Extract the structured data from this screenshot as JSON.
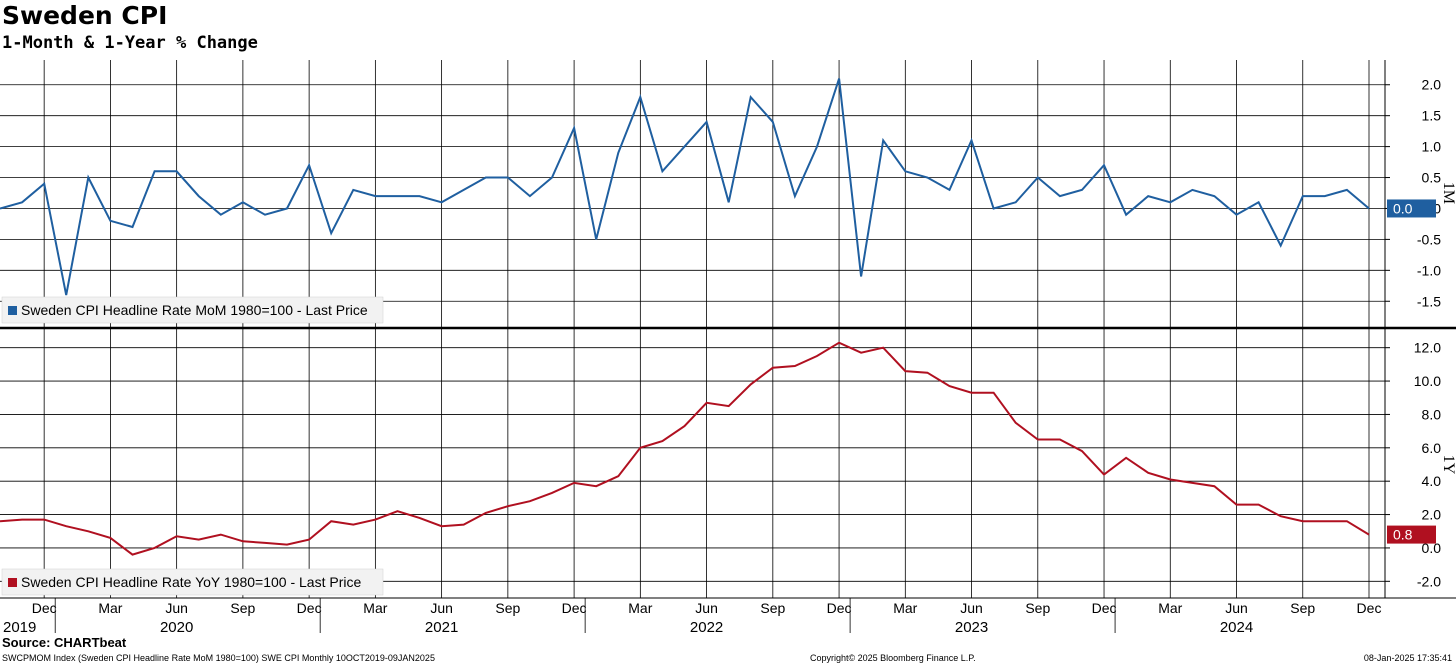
{
  "header": {
    "title": "Sweden CPI",
    "subtitle": "1-Month & 1-Year % Change"
  },
  "footer": {
    "source": "Source: CHARTbeat",
    "ticker_info": "SWCPMOM Index (Sweden CPI Headline Rate MoM 1980=100) SWE CPI  Monthly 10OCT2019-09JAN2025",
    "copyright": "Copyright© 2025 Bloomberg Finance L.P.",
    "timestamp": "08-Jan-2025 17:35:41"
  },
  "colors": {
    "mom": "#1f5fa0",
    "yoy": "#b01020",
    "grid": "#000000"
  },
  "chart_data": [
    {
      "type": "line",
      "axis_label": "1M",
      "last_value_label": "0.0",
      "legend": "Sweden CPI Headline Rate MoM 1980=100 - Last Price",
      "ylim": [
        -1.9,
        2.4
      ],
      "yticks": [
        "2.0",
        "1.5",
        "1.0",
        "0.5",
        "0.0",
        "-0.5",
        "-1.0",
        "-1.5"
      ],
      "ytick_values": [
        2.0,
        1.5,
        1.0,
        0.5,
        0.0,
        -0.5,
        -1.0,
        -1.5
      ],
      "series": [
        {
          "x": [
            "2019-10",
            "2019-11",
            "2019-12",
            "2020-01",
            "2020-02",
            "2020-03",
            "2020-04",
            "2020-05",
            "2020-06",
            "2020-07",
            "2020-08",
            "2020-09",
            "2020-10",
            "2020-11",
            "2020-12",
            "2021-01",
            "2021-02",
            "2021-03",
            "2021-04",
            "2021-05",
            "2021-06",
            "2021-07",
            "2021-08",
            "2021-09",
            "2021-10",
            "2021-11",
            "2021-12",
            "2022-01",
            "2022-02",
            "2022-03",
            "2022-04",
            "2022-05",
            "2022-06",
            "2022-07",
            "2022-08",
            "2022-09",
            "2022-10",
            "2022-11",
            "2022-12",
            "2023-01",
            "2023-02",
            "2023-03",
            "2023-04",
            "2023-05",
            "2023-06",
            "2023-07",
            "2023-08",
            "2023-09",
            "2023-10",
            "2023-11",
            "2023-12",
            "2024-01",
            "2024-02",
            "2024-03",
            "2024-04",
            "2024-05",
            "2024-06",
            "2024-07",
            "2024-08",
            "2024-09",
            "2024-10",
            "2024-11",
            "2024-12"
          ],
          "values": [
            0.0,
            0.1,
            0.4,
            -1.4,
            0.5,
            -0.2,
            -0.3,
            0.6,
            0.6,
            0.2,
            -0.1,
            0.1,
            -0.1,
            0.0,
            0.7,
            -0.4,
            0.3,
            0.2,
            0.2,
            0.2,
            0.1,
            0.3,
            0.5,
            0.5,
            0.2,
            0.5,
            1.3,
            -0.5,
            0.9,
            1.8,
            0.6,
            1.0,
            1.4,
            0.1,
            1.8,
            1.4,
            0.2,
            1.0,
            2.1,
            -1.1,
            1.1,
            0.6,
            0.5,
            0.3,
            1.1,
            0.0,
            0.1,
            0.5,
            0.2,
            0.3,
            0.7,
            -0.1,
            0.2,
            0.1,
            0.3,
            0.2,
            -0.1,
            0.1,
            -0.6,
            0.2,
            0.2,
            0.3,
            0.0
          ]
        }
      ]
    },
    {
      "type": "line",
      "axis_label": "1Y",
      "last_value_label": "0.8",
      "legend": "Sweden CPI Headline Rate YoY 1980=100 - Last Price",
      "ylim": [
        -3.0,
        13.0
      ],
      "yticks": [
        "12.0",
        "10.0",
        "8.0",
        "6.0",
        "4.0",
        "2.0",
        "0.0",
        "-2.0"
      ],
      "ytick_values": [
        12.0,
        10.0,
        8.0,
        6.0,
        4.0,
        2.0,
        0.0,
        -2.0
      ],
      "series": [
        {
          "x": [
            "2019-10",
            "2019-11",
            "2019-12",
            "2020-01",
            "2020-02",
            "2020-03",
            "2020-04",
            "2020-05",
            "2020-06",
            "2020-07",
            "2020-08",
            "2020-09",
            "2020-10",
            "2020-11",
            "2020-12",
            "2021-01",
            "2021-02",
            "2021-03",
            "2021-04",
            "2021-05",
            "2021-06",
            "2021-07",
            "2021-08",
            "2021-09",
            "2021-10",
            "2021-11",
            "2021-12",
            "2022-01",
            "2022-02",
            "2022-03",
            "2022-04",
            "2022-05",
            "2022-06",
            "2022-07",
            "2022-08",
            "2022-09",
            "2022-10",
            "2022-11",
            "2022-12",
            "2023-01",
            "2023-02",
            "2023-03",
            "2023-04",
            "2023-05",
            "2023-06",
            "2023-07",
            "2023-08",
            "2023-09",
            "2023-10",
            "2023-11",
            "2023-12",
            "2024-01",
            "2024-02",
            "2024-03",
            "2024-04",
            "2024-05",
            "2024-06",
            "2024-07",
            "2024-08",
            "2024-09",
            "2024-10",
            "2024-11",
            "2024-12"
          ],
          "values": [
            1.6,
            1.7,
            1.7,
            1.3,
            1.0,
            0.6,
            -0.4,
            0.0,
            0.7,
            0.5,
            0.8,
            0.4,
            0.3,
            0.2,
            0.5,
            1.6,
            1.4,
            1.7,
            2.2,
            1.8,
            1.3,
            1.4,
            2.1,
            2.5,
            2.8,
            3.3,
            3.9,
            3.7,
            4.3,
            6.0,
            6.4,
            7.3,
            8.7,
            8.5,
            9.8,
            10.8,
            10.9,
            11.5,
            12.3,
            11.7,
            12.0,
            10.6,
            10.5,
            9.7,
            9.3,
            9.3,
            7.5,
            6.5,
            6.5,
            5.8,
            4.4,
            5.4,
            4.5,
            4.1,
            3.9,
            3.7,
            2.6,
            2.6,
            1.9,
            1.6,
            1.6,
            1.6,
            0.8
          ]
        }
      ]
    }
  ],
  "x_axis": {
    "month_labels": [
      {
        "date": "2019-12",
        "label": "Dec"
      },
      {
        "date": "2020-03",
        "label": "Mar"
      },
      {
        "date": "2020-06",
        "label": "Jun"
      },
      {
        "date": "2020-09",
        "label": "Sep"
      },
      {
        "date": "2020-12",
        "label": "Dec"
      },
      {
        "date": "2021-03",
        "label": "Mar"
      },
      {
        "date": "2021-06",
        "label": "Jun"
      },
      {
        "date": "2021-09",
        "label": "Sep"
      },
      {
        "date": "2021-12",
        "label": "Dec"
      },
      {
        "date": "2022-03",
        "label": "Mar"
      },
      {
        "date": "2022-06",
        "label": "Jun"
      },
      {
        "date": "2022-09",
        "label": "Sep"
      },
      {
        "date": "2022-12",
        "label": "Dec"
      },
      {
        "date": "2023-03",
        "label": "Mar"
      },
      {
        "date": "2023-06",
        "label": "Jun"
      },
      {
        "date": "2023-09",
        "label": "Sep"
      },
      {
        "date": "2023-12",
        "label": "Dec"
      },
      {
        "date": "2024-03",
        "label": "Mar"
      },
      {
        "date": "2024-06",
        "label": "Jun"
      },
      {
        "date": "2024-09",
        "label": "Sep"
      },
      {
        "date": "2024-12",
        "label": "Dec"
      }
    ],
    "year_labels": [
      {
        "date": "2019-10",
        "label": "2019"
      },
      {
        "date": "2020-06",
        "label": "2020"
      },
      {
        "date": "2021-06",
        "label": "2021"
      },
      {
        "date": "2022-06",
        "label": "2022"
      },
      {
        "date": "2023-06",
        "label": "2023"
      },
      {
        "date": "2024-06",
        "label": "2024"
      }
    ],
    "year_dividers": [
      "2019-12",
      "2020-12",
      "2021-12",
      "2022-12",
      "2023-12"
    ]
  }
}
